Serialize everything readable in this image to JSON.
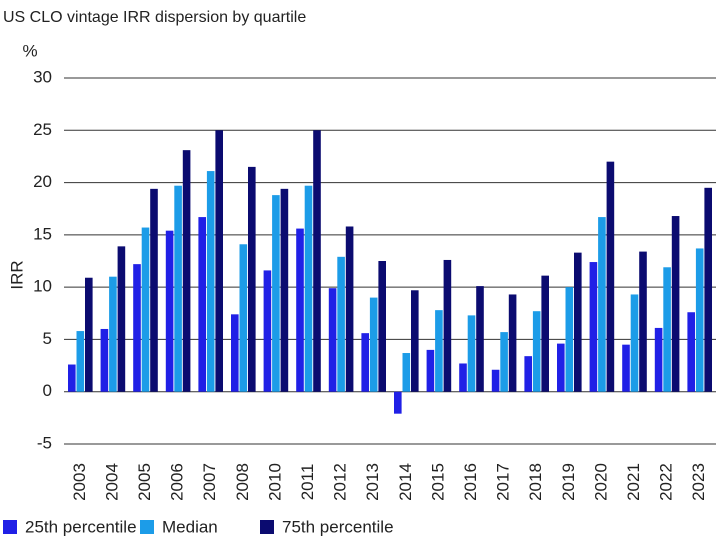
{
  "chart_data": {
    "type": "bar",
    "title": "US CLO vintage IRR dispersion by quartile",
    "y_unit": "%",
    "y_label": "IRR",
    "categories": [
      "2003",
      "2004",
      "2005",
      "2006",
      "2007",
      "2008",
      "2010",
      "2011",
      "2012",
      "2013",
      "2014",
      "2015",
      "2016",
      "2017",
      "2018",
      "2019",
      "2020",
      "2021",
      "2022",
      "2023"
    ],
    "series": [
      {
        "name": "25th percentile",
        "color": "#2020e6",
        "values": [
          2.6,
          6.0,
          12.2,
          15.4,
          16.7,
          7.4,
          11.6,
          15.6,
          9.9,
          5.6,
          -2.1,
          4.0,
          2.7,
          2.1,
          3.4,
          4.6,
          12.4,
          4.5,
          6.1,
          7.6
        ]
      },
      {
        "name": "Median",
        "color": "#1c9ce8",
        "values": [
          5.8,
          11.0,
          15.7,
          19.7,
          21.1,
          14.1,
          18.8,
          19.7,
          12.9,
          9.0,
          3.7,
          7.8,
          7.3,
          5.7,
          7.7,
          10.0,
          16.7,
          9.3,
          11.9,
          13.7
        ]
      },
      {
        "name": "75th percentile",
        "color": "#0b0b70",
        "values": [
          10.9,
          13.9,
          19.4,
          23.1,
          25.0,
          21.5,
          19.4,
          25.0,
          15.8,
          12.5,
          9.7,
          12.6,
          10.1,
          9.3,
          11.1,
          13.3,
          22.0,
          13.4,
          16.8,
          19.5
        ]
      }
    ],
    "ylim": [
      -5,
      30
    ],
    "yticks": [
      -5,
      0,
      5,
      10,
      15,
      20,
      25,
      30
    ],
    "grid": true,
    "legend": "bottom"
  }
}
